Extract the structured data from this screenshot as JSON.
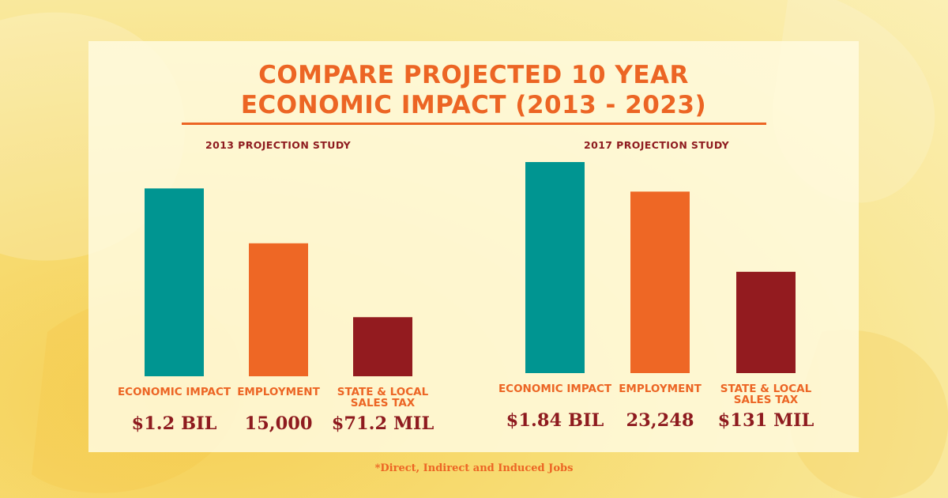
{
  "title_line1": "COMPARE PROJECTED 10 YEAR",
  "title_line2": "ECONOMIC IMPACT (2013 - 2023)",
  "footnote": "*Direct, Indirect and Induced Jobs",
  "colors": {
    "economic_impact": "#009591",
    "employment": "#ee6725",
    "sales_tax": "#931b1f",
    "title": "#ec6524",
    "value_text": "#8e1b1f"
  },
  "chart_data": [
    {
      "type": "bar",
      "title": "2013 PROJECTION STUDY",
      "categories": [
        "ECONOMIC IMPACT",
        "EMPLOYMENT",
        "STATE & LOCAL SALES TAX"
      ],
      "value_labels": [
        "$1.2 BIL",
        "15,000",
        "$71.2 MIL"
      ],
      "values": [
        1.2,
        15000,
        71.2
      ],
      "relative_heights": [
        0.89,
        0.63,
        0.28
      ]
    },
    {
      "type": "bar",
      "title": "2017 PROJECTION STUDY",
      "categories": [
        "ECONOMIC IMPACT",
        "EMPLOYMENT",
        "STATE & LOCAL SALES TAX"
      ],
      "value_labels": [
        "$1.84  BIL",
        "23,248",
        "$131 MIL"
      ],
      "values": [
        1.84,
        23248,
        131
      ],
      "relative_heights": [
        1.0,
        0.86,
        0.48
      ]
    }
  ]
}
